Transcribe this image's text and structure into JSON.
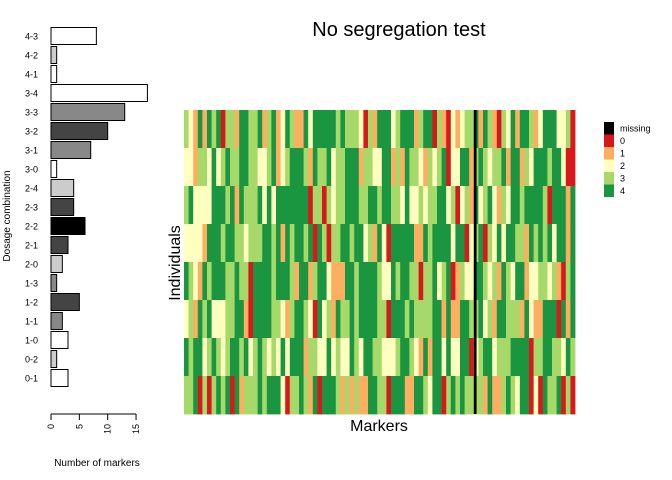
{
  "title": "No segregation test",
  "left_chart": {
    "type": "bar",
    "orientation": "horizontal",
    "ylabel": "Dosage combination",
    "xlabel": "Number of markers",
    "xticks": [
      0,
      5,
      10,
      15
    ],
    "xlim": [
      0,
      17
    ],
    "categories": [
      "4-3",
      "4-2",
      "4-1",
      "3-4",
      "3-3",
      "3-2",
      "3-1",
      "3-0",
      "2-4",
      "2-3",
      "2-2",
      "2-1",
      "2-0",
      "1-3",
      "1-2",
      "1-1",
      "1-0",
      "0-2",
      "0-1"
    ],
    "values": [
      8,
      1,
      1,
      17,
      13,
      10,
      7,
      1,
      4,
      4,
      6,
      3,
      2,
      1,
      5,
      2,
      3,
      1,
      3
    ],
    "fills": [
      "#ffffff",
      "#cccccc",
      "#ffffff",
      "#ffffff",
      "#888888",
      "#444444",
      "#888888",
      "#ffffff",
      "#cccccc",
      "#444444",
      "#000000",
      "#444444",
      "#cccccc",
      "#888888",
      "#444444",
      "#888888",
      "#ffffff",
      "#cccccc",
      "#ffffff"
    ]
  },
  "chart_data": {
    "type": "heatmap",
    "title": "No segregation test",
    "xlabel": "Markers",
    "ylabel": "Individuals",
    "n_rows": 8,
    "n_cols": 85,
    "legend": [
      {
        "label": "missing",
        "color": "#000000"
      },
      {
        "label": "0",
        "color": "#d7191c"
      },
      {
        "label": "1",
        "color": "#fdae61"
      },
      {
        "label": "2",
        "color": "#ffffbf"
      },
      {
        "label": "3",
        "color": "#a6d96a"
      },
      {
        "label": "4",
        "color": "#1a9641"
      }
    ],
    "rows": [
      "3214143403314433413412431142444443433320314442344413440310212334143103241443124442230",
      "2213324234334433223412344431433423344413322441314332132340224413432334144132444344200",
      "3422224443414333424244444440330323344433443443324223233442302314234213244344443044414",
      "2222144434433233344341434434043033443442314204444411434444244023403242443314343424414",
      "4321434443343304444344431441344211144344443224344330334234013224432314324412233231034",
      "2314342223344104444332134432042314334344443304443433334414114433423144333142114440414",
      "4344234323443423432324244413322423224324433222344321414424224402344233344440334433243",
      "3340303434041333434442033431404443131311443304441144324403434333314113432440204334030"
    ]
  }
}
